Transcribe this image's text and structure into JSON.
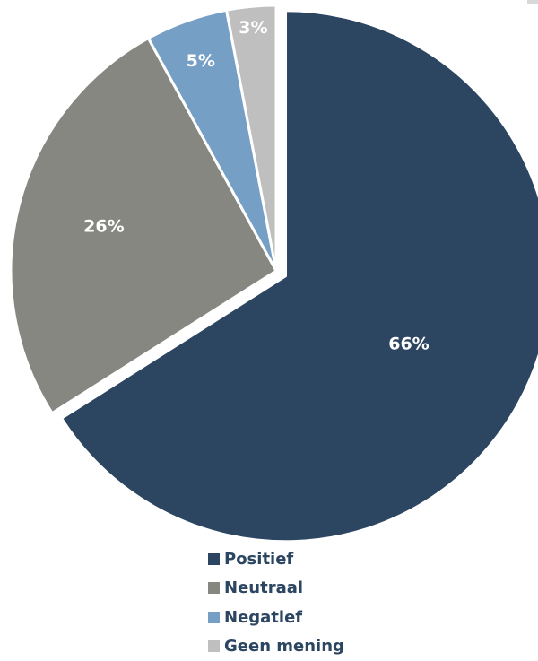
{
  "chart_data": {
    "type": "pie",
    "categories": [
      "Positief",
      "Neutraal",
      "Negatief",
      "Geen mening"
    ],
    "values": [
      66,
      26,
      5,
      3
    ],
    "labels": [
      "66%",
      "26%",
      "5%",
      "3%"
    ],
    "colors": [
      "#2c4561",
      "#878781",
      "#769fc6",
      "#bfbfbf"
    ],
    "label_color": "#ffffff",
    "exploded": "Positief",
    "legend_position": "bottom"
  }
}
